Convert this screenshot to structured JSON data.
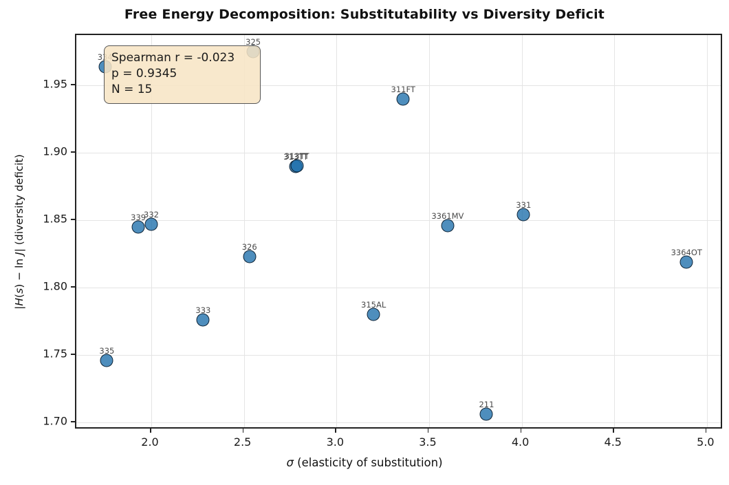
{
  "title": "Free Energy Decomposition: Substitutability vs Diversity Deficit",
  "annotation": {
    "lines": [
      "Spearman r = -0.023",
      "p = 0.9345",
      "N = 15"
    ]
  },
  "chart_data": {
    "type": "scatter",
    "title": "Free Energy Decomposition: Substitutability vs Diversity Deficit",
    "xlabel": "σ (elasticity of substitution)",
    "ylabel": "|H(s) − ln J| (diversity deficit)",
    "xlabel_segments": [
      {
        "text": "σ",
        "italic": true
      },
      {
        "text": " (elasticity of substitution)",
        "italic": false
      }
    ],
    "ylabel_segments": [
      {
        "text": "|",
        "italic": false
      },
      {
        "text": "H",
        "italic": true
      },
      {
        "text": "(",
        "italic": false
      },
      {
        "text": "s",
        "italic": true
      },
      {
        "text": ") − ln ",
        "italic": false
      },
      {
        "text": "J",
        "italic": true
      },
      {
        "text": "| (diversity deficit)",
        "italic": false
      }
    ],
    "xlim": [
      1.6,
      5.09
    ],
    "ylim": [
      1.69,
      1.985
    ],
    "xtick_labels": [
      "2.0",
      "2.5",
      "3.0",
      "3.5",
      "4.0",
      "4.5",
      "5.0"
    ],
    "ytick_labels": [
      "1.70",
      "1.75",
      "1.80",
      "1.85",
      "1.90",
      "1.95"
    ],
    "grid": true,
    "legend": "none",
    "stats": {
      "spearman_r": -0.023,
      "p_value": 0.9345,
      "n": 15
    },
    "points": [
      {
        "label": "334",
        "x": 1.75,
        "y": 1.964
      },
      {
        "label": "325",
        "x": 2.55,
        "y": 1.975
      },
      {
        "label": "311FT",
        "x": 3.36,
        "y": 1.94
      },
      {
        "label": "313TT",
        "x": 2.78,
        "y": 1.89
      },
      {
        "label": "313TT",
        "x": 2.786,
        "y": 1.8905
      },
      {
        "label": "339",
        "x": 1.93,
        "y": 1.845
      },
      {
        "label": "332",
        "x": 2.0,
        "y": 1.847
      },
      {
        "label": "3361MV",
        "x": 3.6,
        "y": 1.846
      },
      {
        "label": "331",
        "x": 4.01,
        "y": 1.854
      },
      {
        "label": "326",
        "x": 2.53,
        "y": 1.823
      },
      {
        "label": "3364OT",
        "x": 4.89,
        "y": 1.819
      },
      {
        "label": "315AL",
        "x": 3.2,
        "y": 1.78
      },
      {
        "label": "333",
        "x": 2.28,
        "y": 1.776
      },
      {
        "label": "335",
        "x": 1.76,
        "y": 1.746
      },
      {
        "label": "211",
        "x": 3.81,
        "y": 1.706
      }
    ],
    "colors": {
      "marker_fill": "#1f77b4",
      "marker_edge": "#14283c",
      "annotation_bg": "#f5deb3",
      "annotation_border": "#555555",
      "grid": "#e4e4e4",
      "spine": "#222222",
      "point_label": "#4a4a4a"
    }
  }
}
